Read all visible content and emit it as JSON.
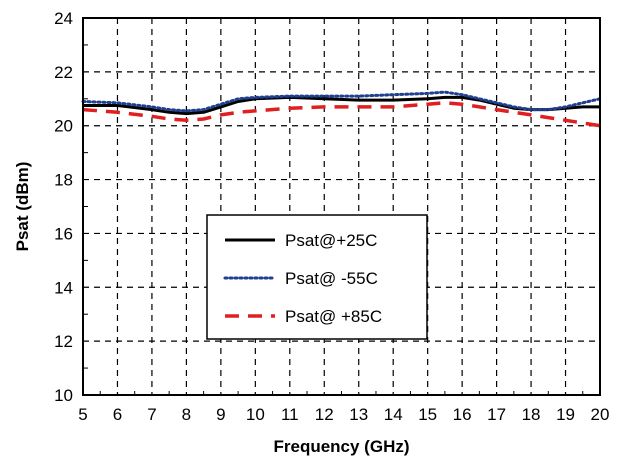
{
  "chart_data": {
    "type": "line",
    "title": "",
    "xlabel": "Frequency (GHz)",
    "ylabel": "Psat (dBm)",
    "xlim": [
      5,
      20
    ],
    "ylim": [
      10,
      24
    ],
    "xticks": [
      5,
      6,
      7,
      8,
      9,
      10,
      11,
      12,
      13,
      14,
      15,
      16,
      17,
      18,
      19,
      20
    ],
    "yticks": [
      10,
      12,
      14,
      16,
      18,
      20,
      22,
      24
    ],
    "grid": true,
    "legend_position": "center-left",
    "series": [
      {
        "name": "Psat@+25C",
        "style": "solid",
        "color": "#000000",
        "x": [
          5,
          6,
          7,
          7.5,
          8,
          8.5,
          9,
          9.5,
          10,
          11,
          12,
          13,
          14,
          15,
          15.5,
          16,
          16.5,
          17,
          17.5,
          18,
          18.5,
          19,
          19.5,
          20
        ],
        "y": [
          20.75,
          20.75,
          20.6,
          20.5,
          20.45,
          20.5,
          20.7,
          20.9,
          21.0,
          21.05,
          21.0,
          20.95,
          20.95,
          21.0,
          21.05,
          21.05,
          20.95,
          20.8,
          20.65,
          20.6,
          20.6,
          20.65,
          20.7,
          20.7
        ]
      },
      {
        "name": "Psat@ -55C",
        "style": "dotted",
        "color": "#1f3f8f",
        "x": [
          5,
          6,
          7,
          7.5,
          8,
          8.5,
          9,
          9.5,
          10,
          11,
          12,
          13,
          14,
          15,
          15.5,
          16,
          16.5,
          17,
          17.5,
          18,
          18.5,
          19,
          19.5,
          20
        ],
        "y": [
          20.9,
          20.85,
          20.7,
          20.6,
          20.55,
          20.6,
          20.8,
          21.0,
          21.05,
          21.1,
          21.1,
          21.1,
          21.15,
          21.2,
          21.25,
          21.15,
          21.0,
          20.85,
          20.7,
          20.6,
          20.6,
          20.7,
          20.85,
          21.0
        ]
      },
      {
        "name": "Psat@ +85C",
        "style": "dashed",
        "color": "#e02020",
        "x": [
          5,
          6,
          7,
          7.5,
          8,
          8.5,
          9,
          9.5,
          10,
          11,
          12,
          13,
          14,
          15,
          15.5,
          16,
          16.5,
          17,
          17.5,
          18,
          18.5,
          19,
          19.5,
          20
        ],
        "y": [
          20.6,
          20.5,
          20.35,
          20.25,
          20.2,
          20.25,
          20.4,
          20.5,
          20.55,
          20.65,
          20.7,
          20.7,
          20.7,
          20.8,
          20.85,
          20.8,
          20.7,
          20.6,
          20.5,
          20.4,
          20.3,
          20.2,
          20.1,
          20.0
        ]
      }
    ]
  }
}
